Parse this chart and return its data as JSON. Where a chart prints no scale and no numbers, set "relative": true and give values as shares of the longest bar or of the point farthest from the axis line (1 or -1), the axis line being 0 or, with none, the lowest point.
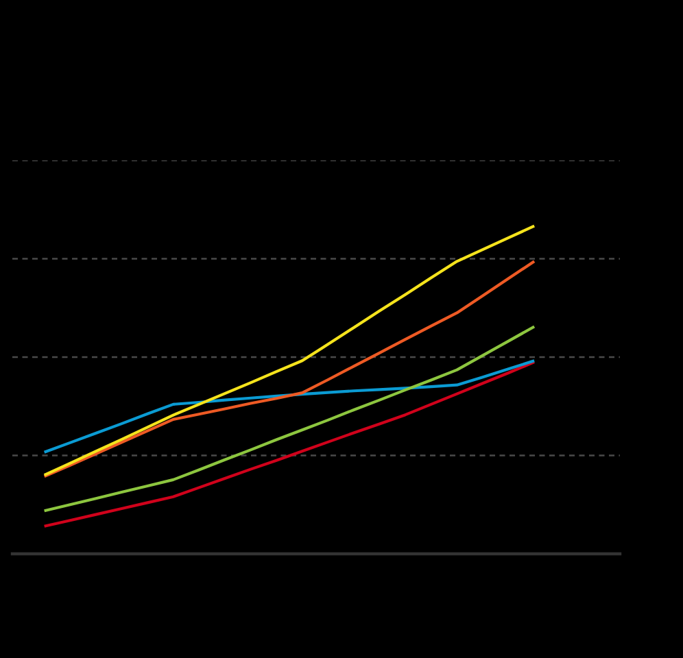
{
  "chart_data": {
    "type": "line",
    "relative": true,
    "grid": "y",
    "categories": [
      null,
      null,
      null,
      null,
      null,
      null,
      null,
      null,
      null,
      null,
      null,
      null,
      null,
      null,
      null,
      null,
      null,
      null,
      null,
      null
    ],
    "series": [
      {
        "color": "#d0021b",
        "values": [
          0.084,
          0.102,
          0.12,
          0.138,
          0.156,
          0.174,
          0.202,
          0.23,
          0.258,
          0.285,
          0.313,
          0.341,
          0.369,
          0.396,
          0.424,
          0.456,
          0.488,
          0.52,
          0.552,
          0.585
        ]
      },
      {
        "color": "#0b9bd3",
        "values": [
          0.31,
          0.339,
          0.368,
          0.397,
          0.427,
          0.456,
          0.462,
          0.469,
          0.475,
          0.481,
          0.487,
          0.492,
          0.497,
          0.501,
          0.505,
          0.51,
          0.515,
          0.539,
          0.564,
          0.589
        ]
      },
      {
        "color": "#8dc63f",
        "values": [
          0.131,
          0.15,
          0.169,
          0.188,
          0.207,
          0.226,
          0.256,
          0.287,
          0.317,
          0.348,
          0.378,
          0.408,
          0.439,
          0.469,
          0.5,
          0.53,
          0.561,
          0.605,
          0.649,
          0.693
        ]
      },
      {
        "color": "#ee5a24",
        "values": [
          0.236,
          0.27,
          0.305,
          0.34,
          0.375,
          0.41,
          0.426,
          0.442,
          0.459,
          0.474,
          0.491,
          0.531,
          0.572,
          0.613,
          0.654,
          0.695,
          0.735,
          0.787,
          0.84,
          0.892
        ]
      },
      {
        "color": "#f5e31c",
        "values": [
          0.24,
          0.276,
          0.313,
          0.349,
          0.386,
          0.423,
          0.456,
          0.489,
          0.522,
          0.556,
          0.589,
          0.639,
          0.69,
          0.741,
          0.791,
          0.842,
          0.892,
          0.928,
          0.964,
          1
        ]
      }
    ]
  }
}
